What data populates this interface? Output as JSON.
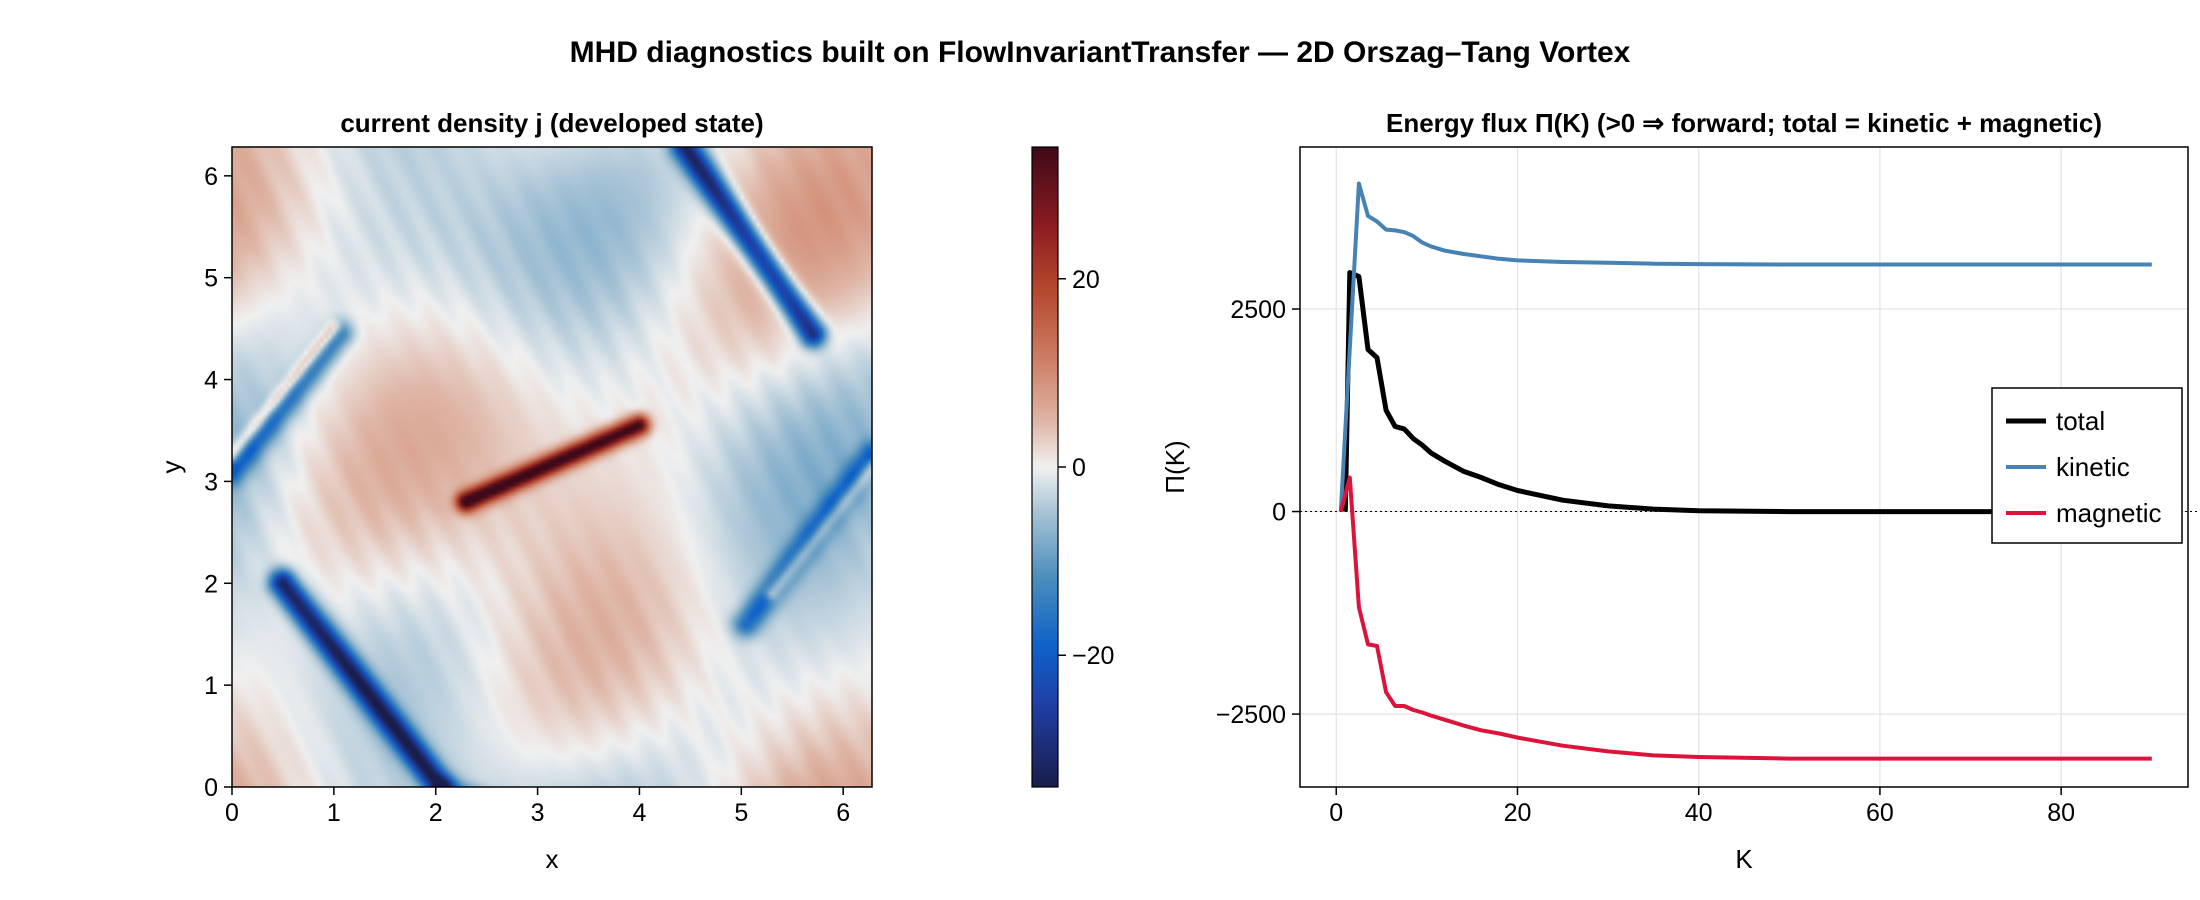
{
  "figure_title": "MHD diagnostics built on FlowInvariantTransfer — 2D Orszag–Tang Vortex",
  "chart_data": [
    {
      "type": "heatmap",
      "title": "current density j (developed state)",
      "xlabel": "x",
      "ylabel": "y",
      "xlim": [
        0,
        6.283
      ],
      "ylim": [
        0,
        6.283
      ],
      "xticks": [
        0,
        1,
        2,
        3,
        4,
        5,
        6
      ],
      "yticks": [
        0,
        1,
        2,
        3,
        4,
        5,
        6
      ],
      "colorbar": {
        "range": [
          -34,
          34
        ],
        "ticks": [
          -20,
          0,
          20
        ],
        "colormap": "balance",
        "stops": [
          {
            "t": 0.0,
            "color": "#1a1d4a"
          },
          {
            "t": 0.13,
            "color": "#1f3fa6"
          },
          {
            "t": 0.22,
            "color": "#0e62c9"
          },
          {
            "t": 0.33,
            "color": "#4e8fbd"
          },
          {
            "t": 0.43,
            "color": "#a8c4d6"
          },
          {
            "t": 0.5,
            "color": "#f0f0f0"
          },
          {
            "t": 0.57,
            "color": "#dfb6a6"
          },
          {
            "t": 0.67,
            "color": "#cd7d63"
          },
          {
            "t": 0.78,
            "color": "#b4462d"
          },
          {
            "t": 0.88,
            "color": "#8a1a20"
          },
          {
            "t": 1.0,
            "color": "#3d0a18"
          }
        ]
      },
      "features": {
        "blue_sheets": [
          {
            "from": [
              0.5,
              2.0
            ],
            "to": [
              2.05,
              0.0
            ],
            "width": 0.09,
            "amp": -31
          },
          {
            "from": [
              4.45,
              6.283
            ],
            "to": [
              5.7,
              4.45
            ],
            "width": 0.09,
            "amp": -31
          },
          {
            "from": [
              0.0,
              3.1
            ],
            "to": [
              1.05,
              4.45
            ],
            "width": 0.09,
            "amp": -16
          },
          {
            "from": [
              6.283,
              3.25
            ],
            "to": [
              5.05,
              1.6
            ],
            "width": 0.09,
            "amp": -16
          },
          {
            "from": [
              2.1,
              0.0
            ],
            "to": [
              2.7,
              -0.2
            ],
            "width": 0.07,
            "amp": -10
          }
        ],
        "red_sheets": [
          {
            "from": [
              2.3,
              2.8
            ],
            "to": [
              4.0,
              3.55
            ],
            "width": 0.07,
            "amp": 34
          },
          {
            "from": [
              0.0,
              3.25
            ],
            "to": [
              1.0,
              4.5
            ],
            "width": 0.05,
            "amp": 14
          },
          {
            "from": [
              6.283,
              3.15
            ],
            "to": [
              5.3,
              1.9
            ],
            "width": 0.05,
            "amp": 14
          }
        ]
      }
    },
    {
      "type": "line",
      "title": "Energy flux Π(K)  (>0 ⇒ forward; total = kinetic + magnetic)",
      "xlabel": "K",
      "ylabel": "Π(K)",
      "xlim": [
        -4,
        94
      ],
      "ylim": [
        -3400,
        4500
      ],
      "xticks": [
        0,
        20,
        40,
        60,
        80
      ],
      "yticks": [
        -2500,
        0,
        2500
      ],
      "grid": true,
      "zero_line": "dotted",
      "legend_position": "right",
      "series": [
        {
          "name": "total",
          "color": "#000000",
          "x": [
            1,
            1.5,
            2.5,
            3.5,
            4.5,
            5.5,
            6.5,
            7.5,
            8.5,
            9.5,
            10.5,
            12,
            14,
            16,
            18,
            20,
            25,
            30,
            35,
            40,
            50,
            60,
            70,
            80,
            90
          ],
          "y": [
            0,
            2950,
            2900,
            2000,
            1900,
            1250,
            1050,
            1020,
            900,
            820,
            720,
            620,
            500,
            420,
            330,
            260,
            140,
            70,
            30,
            10,
            0,
            0,
            0,
            0,
            0
          ]
        },
        {
          "name": "kinetic",
          "color": "#4682b4",
          "x": [
            0.5,
            2.5,
            3.5,
            4.5,
            5.5,
            6.5,
            7.5,
            8.5,
            9.5,
            10.5,
            12,
            14,
            16,
            18,
            20,
            25,
            30,
            35,
            40,
            50,
            60,
            70,
            80,
            90
          ],
          "y": [
            0,
            4050,
            3650,
            3580,
            3480,
            3470,
            3450,
            3400,
            3320,
            3270,
            3220,
            3180,
            3150,
            3120,
            3100,
            3080,
            3070,
            3060,
            3055,
            3050,
            3050,
            3050,
            3050,
            3050
          ]
        },
        {
          "name": "magnetic",
          "color": "#dc143c",
          "x": [
            0.5,
            1.5,
            2.5,
            3.5,
            4.5,
            5.5,
            6.5,
            7.5,
            8.5,
            9.5,
            10.5,
            12,
            14,
            16,
            18,
            20,
            25,
            30,
            35,
            40,
            50,
            60,
            70,
            80,
            90
          ],
          "y": [
            0,
            420,
            -1180,
            -1640,
            -1660,
            -2230,
            -2400,
            -2400,
            -2450,
            -2480,
            -2520,
            -2570,
            -2640,
            -2700,
            -2740,
            -2790,
            -2890,
            -2960,
            -3010,
            -3030,
            -3050,
            -3050,
            -3050,
            -3050,
            -3050
          ]
        }
      ]
    }
  ]
}
